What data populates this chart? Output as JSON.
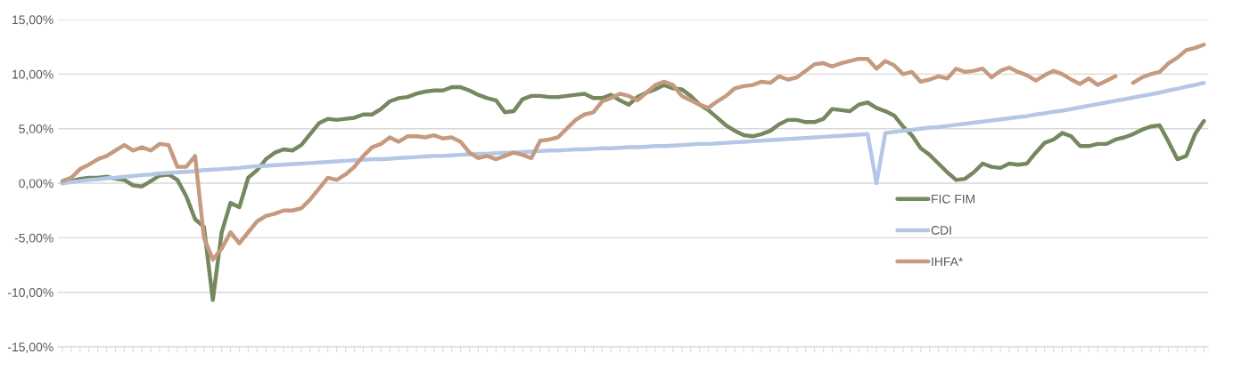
{
  "chart_data": {
    "type": "line",
    "categories": [
      null,
      null,
      null,
      null,
      null,
      null,
      null,
      null,
      null,
      null,
      null,
      null,
      null,
      null,
      null,
      null,
      null,
      null,
      null,
      null,
      null,
      null,
      null,
      null,
      null,
      null,
      null,
      null,
      null,
      null,
      null,
      null,
      null,
      null,
      null,
      null,
      null,
      null,
      null,
      null,
      null,
      null,
      null,
      null,
      null,
      null,
      null,
      null,
      null,
      null,
      null,
      null,
      null,
      null,
      null,
      null,
      null,
      null,
      null,
      null,
      null,
      null,
      null,
      null,
      null,
      null,
      null,
      null,
      null,
      null,
      null,
      null,
      null,
      null,
      null,
      null,
      null,
      null,
      null,
      null,
      null,
      null,
      null,
      null,
      null,
      null,
      null,
      null,
      null,
      null,
      null,
      null,
      null,
      null,
      null,
      null,
      null,
      null,
      null,
      null,
      null,
      null,
      null,
      null,
      null,
      null,
      null,
      null,
      null,
      null,
      null,
      null,
      null,
      null,
      null,
      null,
      null,
      null,
      null,
      null,
      null,
      null,
      null,
      null,
      null,
      null,
      null,
      null,
      null,
      null
    ],
    "series": [
      {
        "name": "FIC FIM",
        "color": "#76885f",
        "values": [
          0,
          0.2,
          0.4,
          0.5,
          0.5,
          0.6,
          0.4,
          0.3,
          -0.2,
          -0.3,
          0.2,
          0.7,
          0.8,
          0.3,
          -1.2,
          -3.3,
          -4,
          -10.7,
          -4.5,
          -1.8,
          -2.2,
          0.5,
          1.2,
          2.2,
          2.8,
          3.1,
          3,
          3.5,
          4.5,
          5.5,
          5.9,
          5.8,
          5.9,
          6,
          6.3,
          6.3,
          6.8,
          7.5,
          7.8,
          7.9,
          8.2,
          8.4,
          8.5,
          8.5,
          8.8,
          8.8,
          8.5,
          8.1,
          7.8,
          7.6,
          6.5,
          6.6,
          7.7,
          8,
          8,
          7.9,
          7.9,
          8,
          8.1,
          8.2,
          7.8,
          7.8,
          8.1,
          7.6,
          7.2,
          7.9,
          8.3,
          8.6,
          9,
          8.7,
          8.6,
          8,
          7.2,
          6.7,
          6,
          5.3,
          4.8,
          4.4,
          4.3,
          4.5,
          4.8,
          5.4,
          5.8,
          5.8,
          5.6,
          5.6,
          5.9,
          6.8,
          6.7,
          6.6,
          7.2,
          7.4,
          6.9,
          6.6,
          6.2,
          5.2,
          4.4,
          3.2,
          2.6,
          1.8,
          1,
          0.3,
          0.4,
          1,
          1.8,
          1.5,
          1.4,
          1.8,
          1.7,
          1.8,
          2.8,
          3.7,
          4,
          4.6,
          4.3,
          3.4,
          3.4,
          3.6,
          3.6,
          4,
          4.2,
          4.5,
          4.9,
          5.2,
          5.3,
          3.8,
          2.2,
          2.5,
          4.5,
          5.7
        ]
      },
      {
        "name": "CDI",
        "color": "#b4c7e7",
        "values": [
          0,
          0.1,
          0.2,
          0.3,
          0.35,
          0.45,
          0.5,
          0.6,
          0.65,
          0.75,
          0.8,
          0.9,
          0.95,
          1.0,
          1.05,
          1.1,
          1.2,
          1.25,
          1.3,
          1.35,
          1.4,
          1.5,
          1.55,
          1.6,
          1.65,
          1.7,
          1.75,
          1.8,
          1.85,
          1.9,
          1.95,
          2.0,
          2.05,
          2.1,
          2.15,
          2.2,
          2.2,
          2.25,
          2.3,
          2.35,
          2.4,
          2.45,
          2.5,
          2.5,
          2.55,
          2.6,
          2.65,
          2.7,
          2.7,
          2.75,
          2.8,
          2.8,
          2.85,
          2.9,
          2.95,
          3.0,
          3.0,
          3.05,
          3.1,
          3.1,
          3.15,
          3.2,
          3.2,
          3.25,
          3.3,
          3.3,
          3.35,
          3.4,
          3.4,
          3.45,
          3.5,
          3.55,
          3.6,
          3.6,
          3.65,
          3.7,
          3.75,
          3.8,
          3.85,
          3.9,
          3.95,
          4.0,
          4.05,
          4.1,
          4.15,
          4.2,
          4.25,
          4.3,
          4.35,
          4.4,
          4.45,
          4.5,
          0,
          4.6,
          4.7,
          4.8,
          4.9,
          5.0,
          5.1,
          5.15,
          5.25,
          5.35,
          5.45,
          5.55,
          5.65,
          5.75,
          5.85,
          5.95,
          6.05,
          6.15,
          6.3,
          6.4,
          6.55,
          6.65,
          6.8,
          6.95,
          7.1,
          7.25,
          7.4,
          7.55,
          7.7,
          7.85,
          8.0,
          8.15,
          8.3,
          8.5,
          8.65,
          8.85,
          9.0,
          9.2
        ]
      },
      {
        "name": "IHFA*",
        "color": "#c59a7e",
        "values": [
          0.2,
          0.5,
          1.3,
          1.7,
          2.2,
          2.5,
          3,
          3.5,
          3,
          3.3,
          3,
          3.6,
          3.5,
          1.5,
          1.5,
          2.5,
          -5,
          -7,
          -6,
          -4.5,
          -5.5,
          -4.5,
          -3.5,
          -3,
          -2.8,
          -2.5,
          -2.5,
          -2.3,
          -1.5,
          -0.5,
          0.5,
          0.3,
          0.8,
          1.5,
          2.5,
          3.3,
          3.6,
          4.2,
          3.8,
          4.3,
          4.3,
          4.2,
          4.4,
          4.1,
          4.2,
          3.8,
          2.8,
          2.3,
          2.5,
          2.2,
          2.5,
          2.8,
          2.6,
          2.3,
          3.9,
          4,
          4.2,
          5,
          5.8,
          6.3,
          6.5,
          7.5,
          7.8,
          8.2,
          8,
          7.6,
          8.3,
          9,
          9.3,
          9,
          8,
          7.6,
          7.2,
          6.9,
          7.5,
          8,
          8.7,
          8.9,
          9,
          9.3,
          9.2,
          9.8,
          9.5,
          9.7,
          10.3,
          10.9,
          11,
          10.7,
          11,
          11.2,
          11.4,
          11.4,
          10.5,
          11.2,
          10.8,
          10,
          10.2,
          9.3,
          9.5,
          9.8,
          9.6,
          10.5,
          10.2,
          10.3,
          10.5,
          9.7,
          10.3,
          10.6,
          10.2,
          9.9,
          9.4,
          9.9,
          10.3,
          10,
          9.5,
          9.1,
          9.6,
          9,
          9.4,
          9.8,
          null,
          9.2,
          9.7,
          10,
          10.2,
          11,
          11.5,
          12.2,
          12.4,
          12.7
        ]
      }
    ],
    "ylim": [
      -15,
      15
    ],
    "yticks": [
      {
        "value": -15,
        "label": "-15,00%"
      },
      {
        "value": -10,
        "label": "-10,00%"
      },
      {
        "value": -5,
        "label": "-5,00%"
      },
      {
        "value": 0,
        "label": "0,00%"
      },
      {
        "value": 5,
        "label": "5,00%"
      },
      {
        "value": 10,
        "label": "10,00%"
      },
      {
        "value": 15,
        "label": "15,00%"
      }
    ],
    "grid": "y",
    "legend": "right",
    "marker": "none",
    "line_style": "solid"
  }
}
